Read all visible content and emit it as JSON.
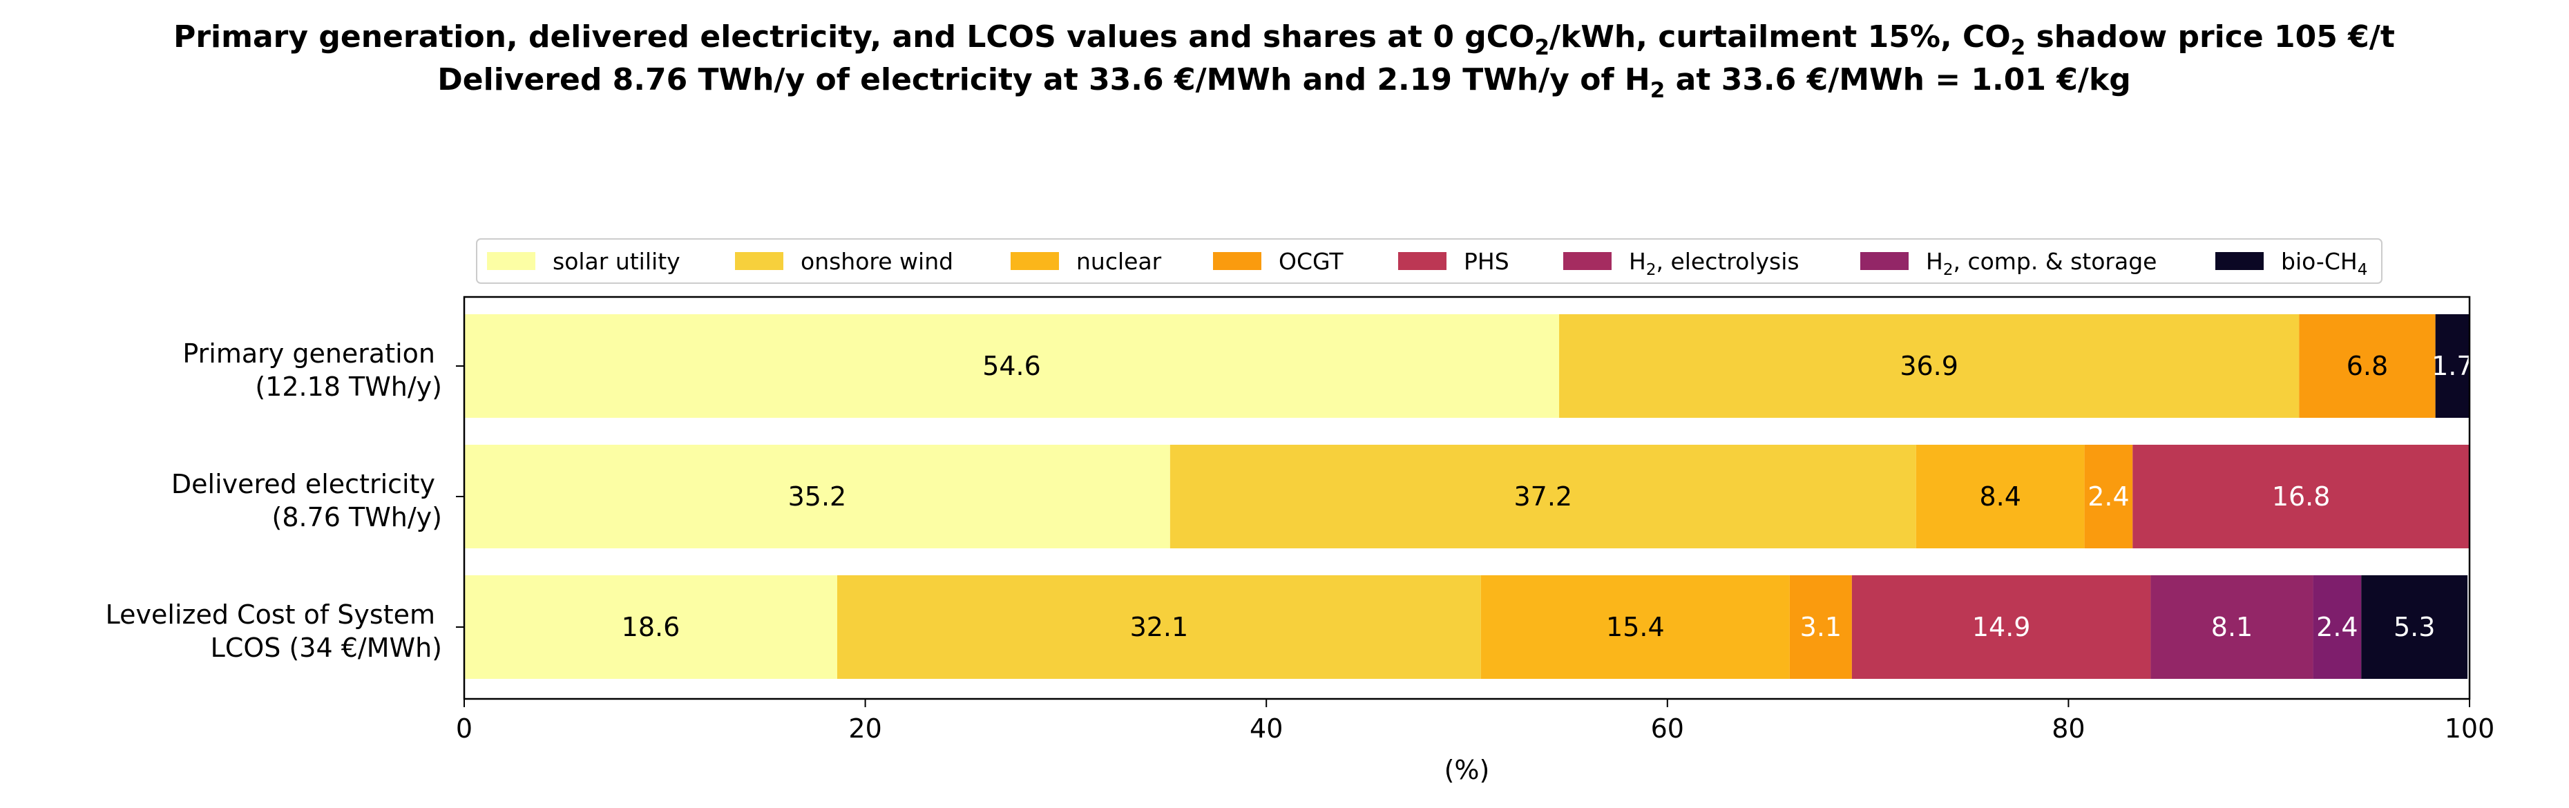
{
  "chart_data": {
    "type": "bar",
    "orientation": "horizontal",
    "stacked": true,
    "title_line1_parts": [
      {
        "t": "Primary generation, delivered electricity, and LCOS values and shares at 0 gCO"
      },
      {
        "t": "2",
        "sub": true
      },
      {
        "t": "/kWh, curtailment 15%, CO"
      },
      {
        "t": "2",
        "sub": true
      },
      {
        "t": " shadow price 105 €/t"
      }
    ],
    "title_line2_parts": [
      {
        "t": "Delivered 8.76 TWh/y of electricity at 33.6 €/MWh and 2.19 TWh/y of H"
      },
      {
        "t": "2",
        "sub": true
      },
      {
        "t": " at 33.6 €/MWh = 1.01 €/kg"
      }
    ],
    "xlabel": "(%)",
    "xlim": [
      0,
      100
    ],
    "xticks": [
      "0",
      "20",
      "40",
      "60",
      "80",
      "100"
    ],
    "grid": false,
    "legend_position": "top-center",
    "categories": [
      {
        "line1": "Primary generation",
        "line2": "(12.18 TWh/y)"
      },
      {
        "line1": "Delivered electricity",
        "line2": "(8.76 TWh/y)"
      },
      {
        "line1": "Levelized Cost of System",
        "line2": "LCOS  (34 €/MWh)"
      }
    ],
    "series": [
      {
        "name_parts": [
          {
            "t": "solar utility"
          }
        ],
        "color": "#fcfea4",
        "label_color": "#000000",
        "values": [
          54.6,
          35.2,
          18.6
        ],
        "labels": [
          "54.6",
          "35.2",
          "18.6"
        ]
      },
      {
        "name_parts": [
          {
            "t": "onshore wind"
          }
        ],
        "color": "#f7d03c",
        "label_color": "#000000",
        "values": [
          36.9,
          37.2,
          32.1
        ],
        "labels": [
          "36.9",
          "37.2",
          "32.1"
        ]
      },
      {
        "name_parts": [
          {
            "t": "nuclear"
          }
        ],
        "color": "#fbb61a",
        "label_color": "#000000",
        "values": [
          0,
          8.4,
          15.4
        ],
        "labels": [
          "",
          "8.4",
          "15.4"
        ]
      },
      {
        "name_parts": [
          {
            "t": "OCGT"
          }
        ],
        "color": "#fa9b0e",
        "label_color": "#000000",
        "values": [
          6.8,
          2.4,
          3.1
        ],
        "labels": [
          "6.8",
          "2.4",
          "3.1"
        ],
        "label_colors": [
          "#000000",
          "#ffffff",
          "#ffffff"
        ]
      },
      {
        "name_parts": [
          {
            "t": "PHS"
          }
        ],
        "color": "#bc3754",
        "label_color": "#ffffff",
        "values": [
          0,
          16.8,
          14.9
        ],
        "labels": [
          "",
          "16.8",
          "14.9"
        ]
      },
      {
        "name_parts": [
          {
            "t": "H"
          },
          {
            "t": "2",
            "sub": true
          },
          {
            "t": ", electrolysis"
          }
        ],
        "color": "#a52c60",
        "label_color": "#ffffff",
        "values": [
          0,
          0,
          0
        ],
        "labels": [
          "",
          "",
          ""
        ]
      },
      {
        "name_parts": [
          {
            "t": "H"
          },
          {
            "t": "2",
            "sub": true
          },
          {
            "t": ", comp. & storage"
          }
        ],
        "color": "#932667",
        "label_color": "#ffffff",
        "values": [
          0,
          0,
          8.1
        ],
        "labels": [
          "",
          "",
          "8.1"
        ]
      },
      {
        "name_parts": [
          {
            "t": "H"
          },
          {
            "t": "2",
            "sub": true
          },
          {
            "t": ", comp. & storage"
          }
        ],
        "color": "#7e1e6c",
        "label_color": "#ffffff",
        "hidden_from_legend": true,
        "values": [
          0,
          0,
          2.4
        ],
        "labels": [
          "",
          "",
          "2.4"
        ]
      },
      {
        "name_parts": [
          {
            "t": "bio-CH"
          },
          {
            "t": "4",
            "sub": true
          }
        ],
        "color": "#0b0724",
        "label_color": "#ffffff",
        "values": [
          1.7,
          0,
          5.3
        ],
        "labels": [
          "1.7",
          "",
          "5.3"
        ]
      }
    ]
  }
}
